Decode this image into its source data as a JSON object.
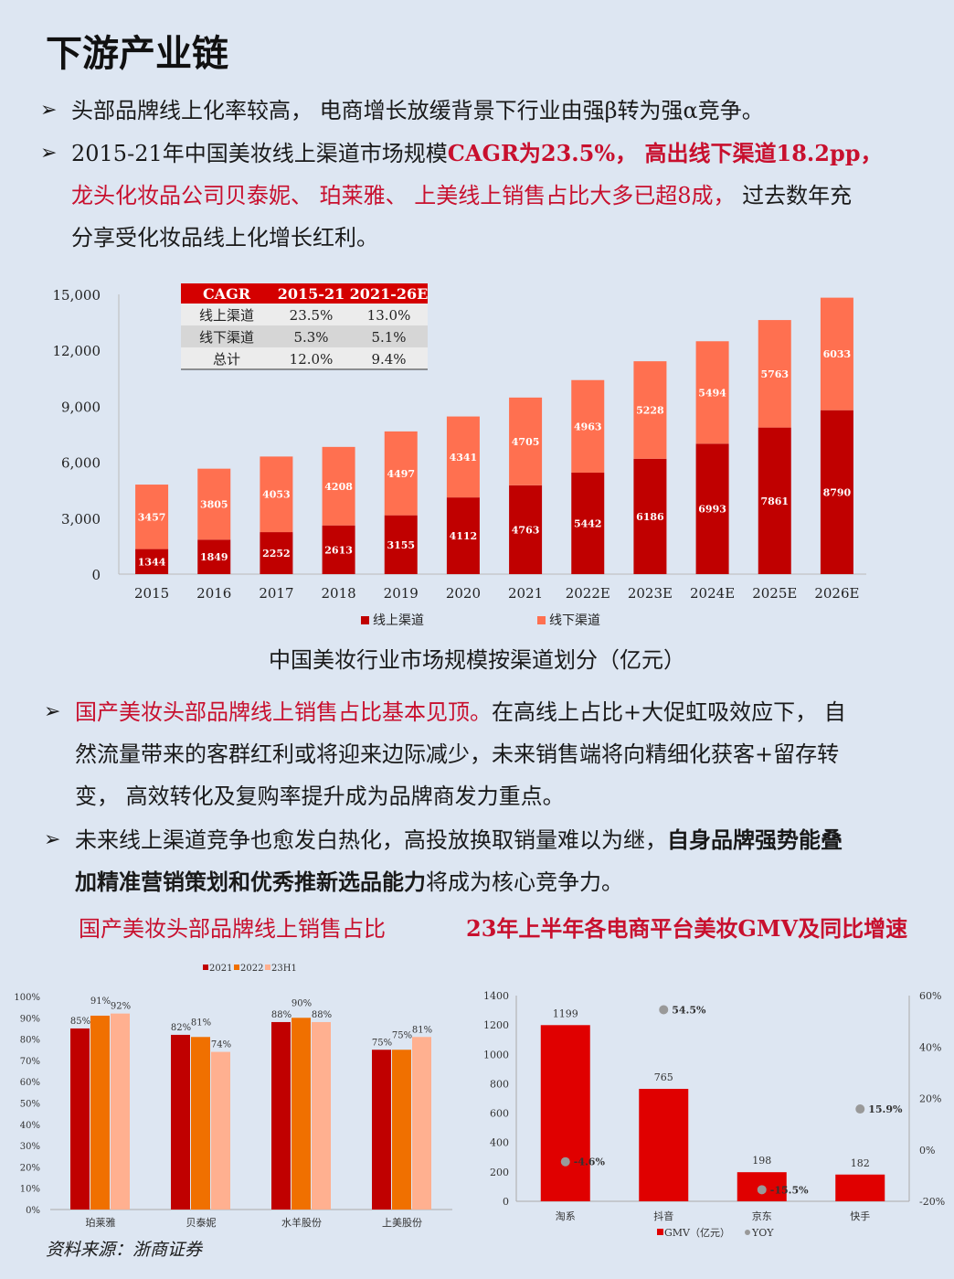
{
  "title": "下游产业链",
  "bullets": {
    "b1": "头部品牌线上化率较高， 电商增长放缓背景下行业由强β转为强α竞争。",
    "b2_part1": "2015-21年中国美妆线上渠道市场规模",
    "b2_part2": "CAGR为23.5%， 高出线下渠道18.2pp，",
    "b2_line2_red": "龙头化妆品公司贝泰妮、 珀莱雅、 上美线上销售占比大多已超8成，",
    "b2_line2_black": " 过去数年充",
    "b2_line3": "分享受化妆品线上化增长红利。",
    "b3_red": "国产美妆头部品牌线上销售占比基本见顶。",
    "b3_black": "在高线上占比+大促虹吸效应下， 自",
    "b3_line2": "然流量带来的客群红利或将迎来边际减少，未来销售端将向精细化获客+留存转",
    "b3_line3": "变， 高效转化及复购率提升成为品牌商发力重点。",
    "b4_part1": "未来线上渠道竞争也愈发白热化，高投放换取销量难以为继，",
    "b4_bold1": "自身品牌强势能叠",
    "b4_bold2": "加精准营销策划和优秀推新选品能力",
    "b4_part2": "将成为核心竞争力。"
  },
  "main_chart_caption": "中国美妆行业市场规模按渠道划分（亿元）",
  "sub_title_left": "国产美妆头部品牌线上销售占比",
  "sub_title_right": "23年上半年各电商平台美妆GMV及同比增速",
  "source": "资料来源：浙商证券",
  "colors": {
    "dark_red": "#c00000",
    "light_red": "#ff7050",
    "orange": "#f07000",
    "peach": "#ffb090",
    "gray": "#999999"
  },
  "chart_data": [
    {
      "type": "bar",
      "stacked": true,
      "categories": [
        "2015",
        "2016",
        "2017",
        "2018",
        "2019",
        "2020",
        "2021",
        "2022E",
        "2023E",
        "2024E",
        "2025E",
        "2026E"
      ],
      "series": [
        {
          "name": "线上渠道",
          "values": [
            1344,
            1849,
            2252,
            2613,
            3155,
            4112,
            4763,
            5442,
            6186,
            6993,
            7861,
            8790
          ]
        },
        {
          "name": "线下渠道",
          "values": [
            3457,
            3805,
            4053,
            4208,
            4497,
            4341,
            4705,
            4963,
            5228,
            5494,
            5763,
            6033
          ]
        }
      ],
      "ylim": [
        0,
        15000
      ],
      "yticks": [
        "0",
        "3,000",
        "6,000",
        "9,000",
        "12,000",
        "15,000"
      ],
      "legend": "bottom",
      "table": {
        "header": [
          "CAGR",
          "2015-21",
          "2021-26E"
        ],
        "rows": [
          [
            "线上渠道",
            "23.5%",
            "13.0%"
          ],
          [
            "线下渠道",
            "5.3%",
            "5.1%"
          ],
          [
            "总计",
            "12.0%",
            "9.4%"
          ]
        ]
      }
    },
    {
      "type": "bar",
      "categories": [
        "珀莱雅",
        "贝泰妮",
        "水羊股份",
        "上美股份"
      ],
      "series": [
        {
          "name": "2021",
          "values": [
            85,
            82,
            88,
            75
          ]
        },
        {
          "name": "2022",
          "values": [
            91,
            81,
            90,
            75
          ]
        },
        {
          "name": "23H1",
          "values": [
            92,
            74,
            88,
            81
          ]
        }
      ],
      "ylim": [
        0,
        100
      ],
      "yticks": [
        "0%",
        "10%",
        "20%",
        "30%",
        "40%",
        "50%",
        "60%",
        "70%",
        "80%",
        "90%",
        "100%"
      ],
      "legend": "top"
    },
    {
      "type": "bar",
      "categories": [
        "淘系",
        "抖音",
        "京东",
        "快手"
      ],
      "series": [
        {
          "name": "GMV（亿元）",
          "values": [
            1199,
            765,
            198,
            182
          ]
        },
        {
          "name": "YOY",
          "type": "scatter",
          "values": [
            -4.6,
            54.5,
            -15.5,
            15.9
          ],
          "labels": [
            "-4.6%",
            "54.5%",
            "-15.5%",
            "15.9%"
          ]
        }
      ],
      "ylim": [
        0,
        1400
      ],
      "y2lim": [
        -20,
        60
      ],
      "yticks": [
        "0",
        "200",
        "400",
        "600",
        "800",
        "1000",
        "1200",
        "1400"
      ],
      "y2ticks": [
        "-20%",
        "0%",
        "20%",
        "40%",
        "60%"
      ],
      "legend": "bottom"
    }
  ]
}
